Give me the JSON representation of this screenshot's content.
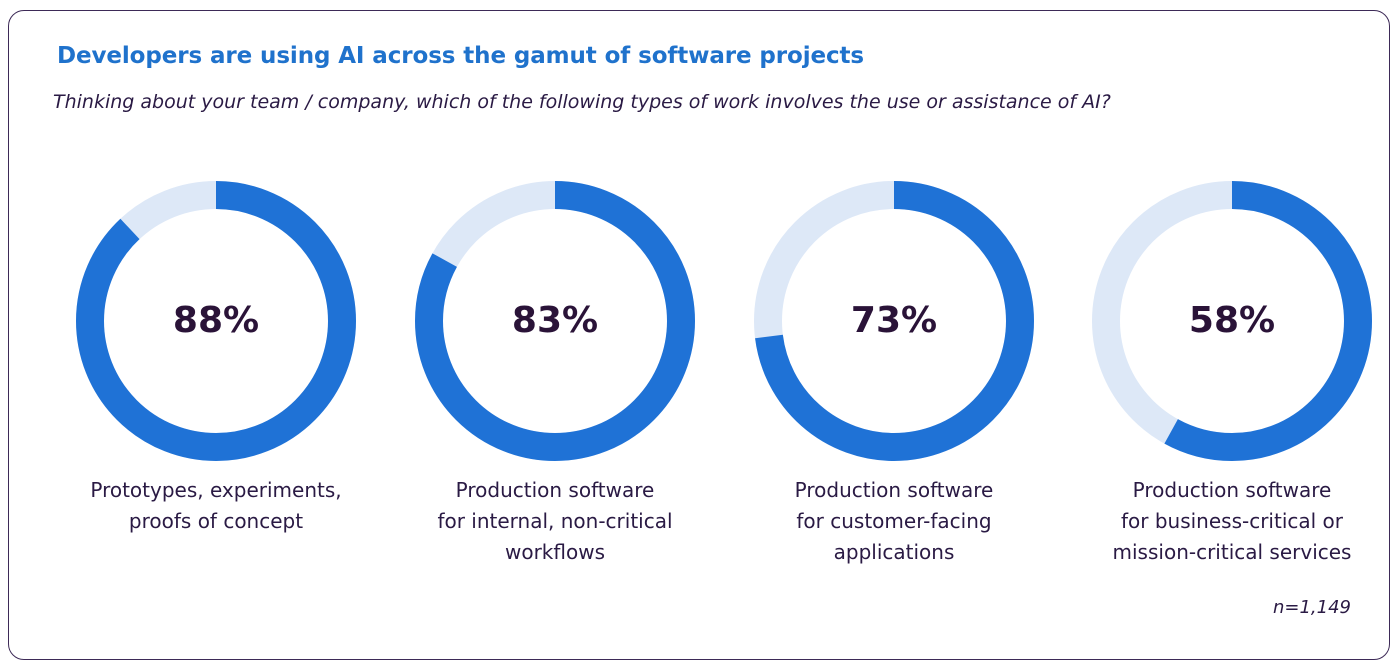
{
  "colors": {
    "filled": "#1f72d6",
    "remaining": "#dde8f7",
    "title": "#1f72cc",
    "text": "#2a1a44"
  },
  "chart_data": {
    "type": "pie",
    "title": "Developers are using AI across the gamut of software projects",
    "subtitle": "Thinking about your team / company, which of the following types of work involves the use or assistance of AI?",
    "note": "n=1,149",
    "items": [
      {
        "value": 88,
        "value_label": "88%",
        "label_lines": [
          "Prototypes, experiments,",
          "proofs of concept"
        ]
      },
      {
        "value": 83,
        "value_label": "83%",
        "label_lines": [
          "Production software",
          "for internal, non-critical",
          "workflows"
        ]
      },
      {
        "value": 73,
        "value_label": "73%",
        "label_lines": [
          "Production software",
          "for customer-facing",
          "applications"
        ]
      },
      {
        "value": 58,
        "value_label": "58%",
        "label_lines": [
          "Production software",
          "for business-critical or",
          "mission-critical services"
        ]
      }
    ]
  }
}
